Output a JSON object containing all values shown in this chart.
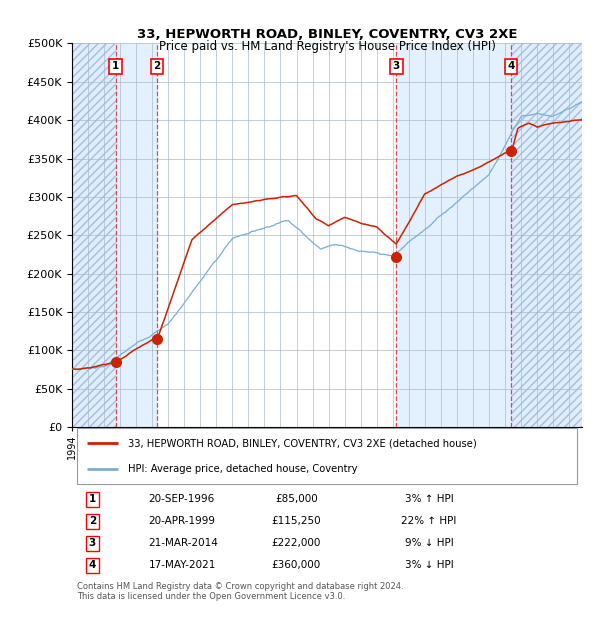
{
  "title": "33, HEPWORTH ROAD, BINLEY, COVENTRY, CV3 2XE",
  "subtitle": "Price paid vs. HM Land Registry's House Price Index (HPI)",
  "ylim": [
    0,
    500000
  ],
  "yticks": [
    0,
    50000,
    100000,
    150000,
    200000,
    250000,
    300000,
    350000,
    400000,
    450000,
    500000
  ],
  "xlim_start": 1994.0,
  "xlim_end": 2025.8,
  "sale_dates": [
    1996.72,
    1999.31,
    2014.22,
    2021.38
  ],
  "sale_prices": [
    85000,
    115250,
    222000,
    360000
  ],
  "sale_labels": [
    "1",
    "2",
    "3",
    "4"
  ],
  "sale_pct": [
    "3% ↑ HPI",
    "22% ↑ HPI",
    "9% ↓ HPI",
    "3% ↓ HPI"
  ],
  "sale_display_dates": [
    "20-SEP-1996",
    "20-APR-1999",
    "21-MAR-2014",
    "17-MAY-2021"
  ],
  "hpi_color": "#7aaed6",
  "price_color": "#cc2200",
  "bg_highlight_color": "#ddeeff",
  "vline_color": "#cc3333",
  "grid_color": "#aabbcc",
  "legend_label_price": "33, HEPWORTH ROAD, BINLEY, COVENTRY, CV3 2XE (detached house)",
  "legend_label_hpi": "HPI: Average price, detached house, Coventry",
  "footer1": "Contains HM Land Registry data © Crown copyright and database right 2024.",
  "footer2": "This data is licensed under the Open Government Licence v3.0."
}
